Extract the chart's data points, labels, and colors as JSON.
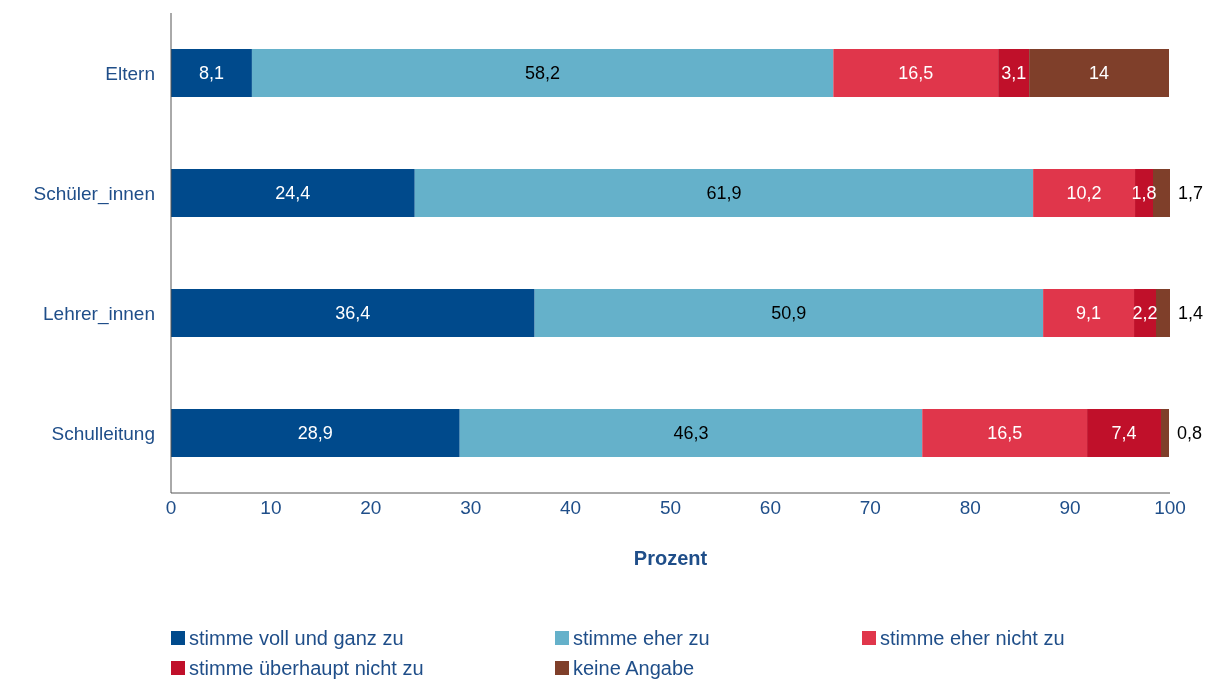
{
  "chart_data": {
    "type": "bar",
    "orientation": "horizontal",
    "stacked": true,
    "categories": [
      "Eltern",
      "Schüler_innen",
      "Lehrer_innen",
      "Schulleitung"
    ],
    "series": [
      {
        "name": "stimme voll und ganz zu",
        "color": "#004a8c",
        "values": [
          8.1,
          24.4,
          36.4,
          28.9
        ],
        "value_labels": [
          "8,1",
          "24,4",
          "36,4",
          "28,9"
        ]
      },
      {
        "name": "stimme eher zu",
        "color": "#65b1ca",
        "values": [
          58.2,
          61.9,
          50.9,
          46.3
        ],
        "value_labels": [
          "58,2",
          "61,9",
          "50,9",
          "46,3"
        ]
      },
      {
        "name": "stimme eher nicht zu",
        "color": "#e0364b",
        "values": [
          16.5,
          10.2,
          9.1,
          16.5
        ],
        "value_labels": [
          "16,5",
          "10,2",
          "9,1",
          "16,5"
        ]
      },
      {
        "name": "stimme überhaupt nicht zu",
        "color": "#c0102a",
        "values": [
          3.1,
          1.8,
          2.2,
          7.4
        ],
        "value_labels": [
          "3,1",
          "1,8",
          "2,2",
          "7,4"
        ]
      },
      {
        "name": "keine Angabe",
        "color": "#7f3f2a",
        "values": [
          14,
          1.7,
          1.4,
          0.8
        ],
        "value_labels": [
          "14",
          "1,7",
          "1,4",
          "0,8"
        ]
      }
    ],
    "xlim": [
      0,
      100
    ],
    "xticks": [
      0,
      10,
      20,
      30,
      40,
      50,
      60,
      70,
      80,
      90,
      100
    ],
    "xlabel": "Prozent",
    "grid": false,
    "legend": "bottom"
  }
}
